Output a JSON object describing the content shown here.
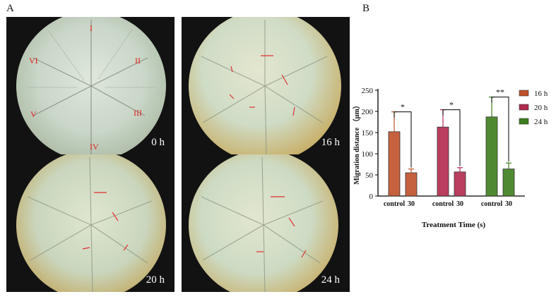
{
  "panel_labels": {
    "a": "A",
    "b": "B"
  },
  "micrographs": [
    {
      "time_label": "0 h",
      "roman_labels": [
        "I",
        "II",
        "III",
        "IV",
        "V",
        "VI"
      ]
    },
    {
      "time_label": "16 h",
      "roman_labels": []
    },
    {
      "time_label": "20 h",
      "roman_labels": []
    },
    {
      "time_label": "24 h",
      "roman_labels": []
    }
  ],
  "chart_data": {
    "type": "bar",
    "xlabel": "Treatment Time (s)",
    "ylabel": "Migration distance （μm）",
    "ylim": [
      0,
      250
    ],
    "yticks": [
      "0",
      "50",
      "100",
      "150",
      "200",
      "250"
    ],
    "groups": [
      {
        "series": "16 h",
        "categories": [
          "control",
          "30"
        ],
        "values": [
          152,
          55
        ],
        "errors": [
          47,
          9
        ],
        "significance": "*"
      },
      {
        "series": "20 h",
        "categories": [
          "control",
          "30"
        ],
        "values": [
          163,
          57
        ],
        "errors": [
          41,
          10
        ],
        "significance": "*"
      },
      {
        "series": "24 h",
        "categories": [
          "control",
          "30"
        ],
        "values": [
          187,
          64
        ],
        "errors": [
          47,
          14
        ],
        "significance": "**"
      }
    ],
    "legend": {
      "placement": "right",
      "entries": [
        {
          "name": "16 h",
          "color": "#c0502a"
        },
        {
          "name": "20 h",
          "color": "#b2294d"
        },
        {
          "name": "24 h",
          "color": "#3c7d1c"
        }
      ]
    },
    "grid": false
  }
}
